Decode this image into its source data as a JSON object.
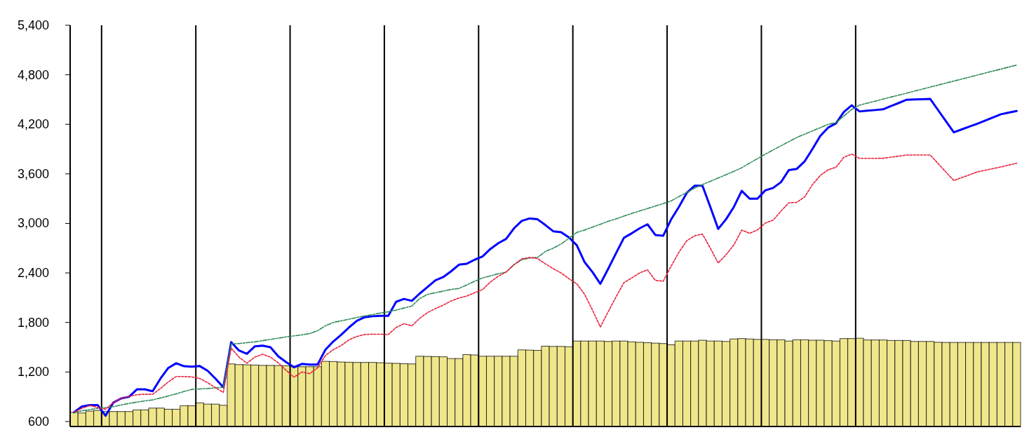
{
  "chart_data": {
    "type": "bar",
    "ylim": [
      540,
      5400
    ],
    "categories": [
      null,
      null,
      null,
      null,
      null,
      null,
      null,
      null,
      null,
      null,
      null,
      null,
      null,
      null,
      null,
      null,
      null,
      null,
      null,
      null,
      null,
      null,
      null,
      null,
      null,
      null,
      null,
      null,
      null,
      null,
      null,
      null,
      null,
      null,
      null,
      null,
      null,
      null,
      null,
      null,
      null,
      null,
      null,
      null,
      null,
      null,
      null,
      null,
      null,
      null,
      null,
      null,
      null,
      null,
      null,
      null,
      null,
      null,
      null,
      null,
      null,
      null,
      null,
      null,
      null,
      null,
      null,
      null,
      null,
      null,
      null,
      null,
      null,
      null,
      null,
      null,
      null,
      null,
      null,
      null,
      null,
      null,
      null,
      null,
      null,
      null,
      null,
      null,
      null,
      null,
      null,
      null,
      null,
      null,
      null,
      null,
      null,
      null,
      null,
      null,
      null,
      null,
      null,
      null,
      null,
      null,
      null,
      null,
      null,
      null,
      null,
      null,
      null,
      null,
      null,
      null,
      null,
      null,
      null,
      null,
      null
    ],
    "yticks": [
      {
        "value": 600,
        "label": "600"
      },
      {
        "value": 1200,
        "label": "1,200"
      },
      {
        "value": 1800,
        "label": "1,800"
      },
      {
        "value": 2400,
        "label": "2,400"
      },
      {
        "value": 3000,
        "label": "3,000"
      },
      {
        "value": 3600,
        "label": "3,600"
      },
      {
        "value": 4200,
        "label": "4,200"
      },
      {
        "value": 4800,
        "label": "4,800"
      },
      {
        "value": 5400,
        "label": "5,400"
      }
    ],
    "grid": false,
    "series": [
      {
        "color": "#f0e68c",
        "values": [
          712,
          704,
          726,
          735,
          721,
          721,
          721,
          721,
          741,
          741,
          763,
          763,
          749,
          749,
          792,
          792,
          826,
          811,
          811,
          797,
          1298,
          1290,
          1287,
          1284,
          1280,
          1280,
          1278,
          1275,
          1264,
          1264,
          1264,
          1264,
          1329,
          1327,
          1321,
          1318,
          1316,
          1316,
          1316,
          1312,
          1307,
          1305,
          1300,
          1298,
          1391,
          1389,
          1386,
          1384,
          1363,
          1363,
          1411,
          1406,
          1391,
          1391,
          1391,
          1391,
          1391,
          1468,
          1465,
          1462,
          1513,
          1510,
          1510,
          1505,
          1575,
          1575,
          1575,
          1575,
          1570,
          1575,
          1575,
          1565,
          1560,
          1555,
          1550,
          1545,
          1530,
          1575,
          1575,
          1575,
          1585,
          1575,
          1575,
          1570,
          1600,
          1605,
          1600,
          1595,
          1595,
          1590,
          1590,
          1575,
          1590,
          1590,
          1585,
          1585,
          1580,
          1575,
          1605,
          1605,
          1609,
          1588,
          1588,
          1588,
          1582,
          1582,
          1582,
          1570,
          1570,
          1570,
          1560,
          1558,
          1558,
          1558,
          1558,
          1558,
          1558,
          1558,
          1558,
          1558,
          1558
        ]
      },
      {
        "type": "line",
        "color": "#0000ff",
        "line_style": "solid",
        "values": [
          712,
          783,
          800,
          800,
          670,
          830,
          880,
          900,
          990,
          990,
          967,
          1120,
          1250,
          1306,
          1270,
          1265,
          1272,
          1215,
          1120,
          1015,
          1561,
          1460,
          1420,
          1510,
          1520,
          1500,
          1390,
          1320,
          1258,
          1298,
          1290,
          1290,
          1470,
          1570,
          1650,
          1740,
          1820,
          1864,
          1875,
          1880,
          1881,
          2050,
          2085,
          2062,
          2150,
          2230,
          2310,
          2350,
          2420,
          2500,
          2512,
          2560,
          2599,
          2690,
          2760,
          2812,
          2940,
          3030,
          3060,
          3050,
          2980,
          2905,
          2893,
          2830,
          2735,
          2530,
          2410,
          2268,
          2450,
          2640,
          2825,
          2880,
          2940,
          2989,
          2860,
          2850,
          3046,
          3200,
          3370,
          3456,
          3456,
          3200,
          2933,
          3050,
          3200,
          3394,
          3300,
          3300,
          3400,
          3430,
          3500,
          3646,
          3660,
          3750,
          3900,
          4060,
          4160,
          4211,
          4350,
          4430,
          4356,
          4365,
          4373,
          4382,
          4421,
          4459,
          4498,
          4501,
          4504,
          4507,
          4372,
          4238,
          4103,
          4138,
          4173,
          4208,
          4246,
          4284,
          4322,
          4342,
          4362
        ]
      },
      {
        "type": "line",
        "color": "#e8203c",
        "line_style": "dotted",
        "values": [
          712,
          760,
          795,
          770,
          749,
          830,
          880,
          905,
          925,
          930,
          930,
          1000,
          1080,
          1145,
          1145,
          1140,
          1122,
          1070,
          1010,
          953,
          1490,
          1380,
          1306,
          1380,
          1415,
          1380,
          1310,
          1220,
          1137,
          1200,
          1180,
          1250,
          1400,
          1470,
          1520,
          1590,
          1630,
          1654,
          1658,
          1657,
          1654,
          1740,
          1785,
          1759,
          1850,
          1920,
          1968,
          2010,
          2060,
          2095,
          2120,
          2160,
          2198,
          2290,
          2360,
          2410,
          2500,
          2570,
          2588,
          2575,
          2510,
          2452,
          2400,
          2330,
          2268,
          2140,
          1950,
          1745,
          1930,
          2110,
          2282,
          2340,
          2400,
          2438,
          2310,
          2300,
          2480,
          2650,
          2790,
          2850,
          2870,
          2700,
          2520,
          2620,
          2740,
          2919,
          2880,
          2920,
          3004,
          3040,
          3150,
          3250,
          3255,
          3320,
          3470,
          3580,
          3650,
          3680,
          3800,
          3840,
          3787,
          3788,
          3788,
          3789,
          3802,
          3815,
          3828,
          3828,
          3828,
          3828,
          3725,
          3622,
          3519,
          3554,
          3589,
          3624,
          3644,
          3664,
          3684,
          3706,
          3728
        ]
      },
      {
        "type": "line",
        "color": "#2e8b57",
        "line_style": "dashed",
        "values": [
          712,
          730,
          745,
          760,
          769,
          780,
          800,
          820,
          835,
          850,
          862,
          885,
          910,
          935,
          965,
          990,
          995,
          1000,
          1008,
          1015,
          1538,
          1545,
          1555,
          1565,
          1580,
          1595,
          1610,
          1625,
          1638,
          1650,
          1665,
          1700,
          1760,
          1800,
          1820,
          1840,
          1860,
          1880,
          1895,
          1915,
          1929,
          1950,
          1975,
          1999,
          2090,
          2140,
          2160,
          2180,
          2200,
          2212,
          2255,
          2300,
          2339,
          2365,
          2390,
          2410,
          2500,
          2560,
          2580,
          2588,
          2660,
          2700,
          2750,
          2820,
          2891,
          2920,
          2955,
          2990,
          3025,
          3055,
          3088,
          3120,
          3150,
          3180,
          3210,
          3240,
          3272,
          3325,
          3375,
          3428,
          3470,
          3510,
          3550,
          3590,
          3630,
          3674,
          3730,
          3785,
          3838,
          3890,
          3940,
          3990,
          4040,
          4080,
          4120,
          4160,
          4200,
          4220,
          4300,
          4380,
          4432,
          4457,
          4481,
          4506,
          4530,
          4554,
          4578,
          4603,
          4627,
          4651,
          4675,
          4700,
          4724,
          4748,
          4772,
          4797,
          4821,
          4845,
          4869,
          4894,
          4918
        ]
      }
    ]
  }
}
